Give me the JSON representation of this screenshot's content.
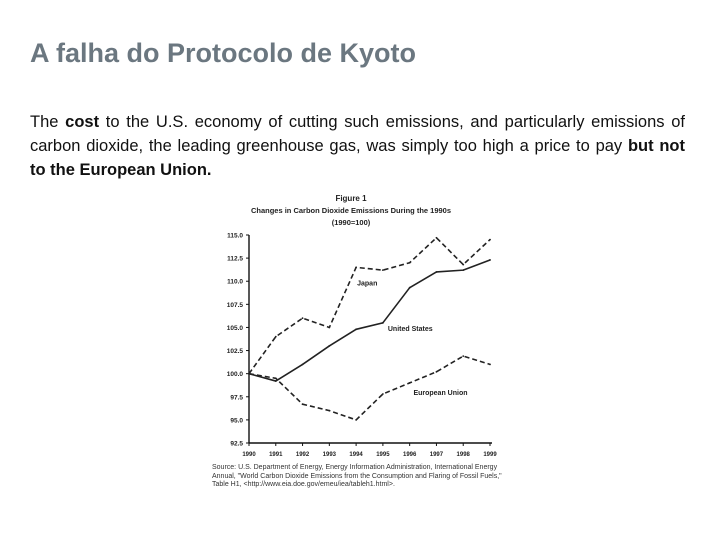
{
  "slide": {
    "title": "A falha do Protocolo de Kyoto",
    "paragraph": {
      "part1": "The ",
      "bold1": "cost",
      "part2": " to the U.S. economy of cutting such emissions, and particularly emissions of carbon dioxide, the leading greenhouse gas, was simply too high a price to pay ",
      "bold2": "but not to the European Union."
    }
  },
  "chart_data": {
    "type": "line",
    "title": "Figure 1",
    "subtitle": "Changes in Carbon Dioxide Emissions During the 1990s",
    "subtitle2": "(1990=100)",
    "categories": [
      "1990",
      "1991",
      "1992",
      "1993",
      "1994",
      "1995",
      "1996",
      "1997",
      "1998",
      "1999"
    ],
    "y_ticks": [
      "115.0",
      "112.5",
      "110.0",
      "107.5",
      "105.0",
      "102.5",
      "100.0",
      "97.5",
      "95.0",
      "92.5"
    ],
    "ylim": [
      92.5,
      115.0
    ],
    "series": [
      {
        "name": "Japan",
        "style": "dashed",
        "values": [
          100.0,
          104.0,
          106.0,
          105.0,
          111.5,
          111.2,
          112.0,
          114.7,
          111.8,
          114.5
        ]
      },
      {
        "name": "United States",
        "style": "solid",
        "values": [
          100.0,
          99.2,
          101.0,
          103.0,
          104.8,
          105.5,
          109.3,
          111.0,
          111.2,
          112.3
        ]
      },
      {
        "name": "European Union",
        "style": "dashed",
        "values": [
          100.0,
          99.5,
          96.7,
          96.0,
          95.0,
          97.8,
          99.0,
          100.2,
          101.9,
          101.0
        ]
      }
    ],
    "source": "Source: U.S. Department of Energy, Energy Information Administration, International Energy Annual, \"World Carbon Dioxide Emissions from the Consumption and Flaring of Fossil Fuels,\" Table H1, <http://www.eia.doe.gov/emeu/iea/tableh1.html>."
  }
}
